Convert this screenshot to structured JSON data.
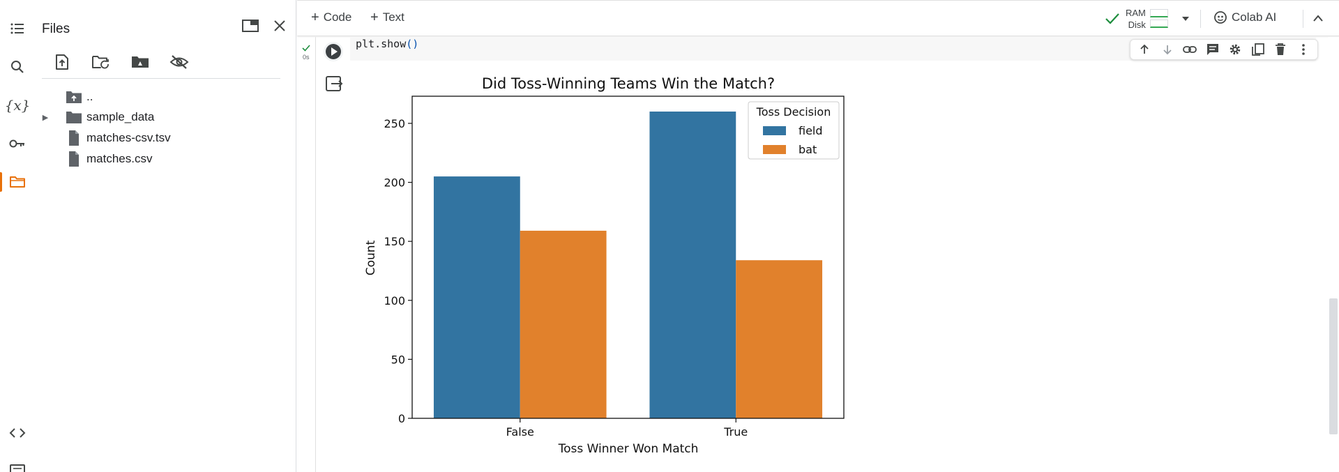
{
  "sidebar": {
    "icons": [
      "table-of-contents-icon",
      "search-icon",
      "variables-icon",
      "secrets-key-icon",
      "files-folder-icon",
      "code-snippets-icon",
      "command-palette-icon"
    ],
    "variables_glyph": "{x}",
    "active": "files-folder-icon",
    "accent_color": "#e8710a"
  },
  "files_panel": {
    "title": "Files",
    "toolbar_icons": [
      "upload-file-icon",
      "refresh-icon",
      "mount-drive-icon",
      "toggle-hidden-files-icon"
    ],
    "items": [
      {
        "name": "..",
        "type": "parent-folder"
      },
      {
        "name": "sample_data",
        "type": "folder",
        "collapsed": true
      },
      {
        "name": "matches-csv.tsv",
        "type": "file"
      },
      {
        "name": "matches.csv",
        "type": "file"
      }
    ]
  },
  "topbar": {
    "add_code_label": "Code",
    "add_text_label": "Text",
    "ram_label": "RAM",
    "disk_label": "Disk",
    "connected_color": "#1e8e3e",
    "colab_ai_label": "Colab AI"
  },
  "cell": {
    "code_prefix": "plt.show",
    "code_parens": "()",
    "exec_status": "0s",
    "toolbar_icons": [
      "move-up-icon",
      "move-down-icon",
      "link-icon",
      "comment-icon",
      "settings-icon",
      "mirror-cell-icon",
      "delete-icon",
      "more-options-icon"
    ]
  },
  "chart_data": {
    "type": "bar",
    "title": "Did Toss-Winning Teams Win the Match?",
    "xlabel": "Toss Winner Won Match",
    "ylabel": "Count",
    "categories": [
      "False",
      "True"
    ],
    "series": [
      {
        "name": "field",
        "values": [
          205,
          260
        ],
        "color": "#3274a1"
      },
      {
        "name": "bat",
        "values": [
          159,
          134
        ],
        "color": "#e1812c"
      }
    ],
    "ylim": [
      0,
      273
    ],
    "yticks": [
      0,
      50,
      100,
      150,
      200,
      250
    ],
    "legend": {
      "title": "Toss Decision",
      "placement": "top-right"
    },
    "grid": false
  }
}
